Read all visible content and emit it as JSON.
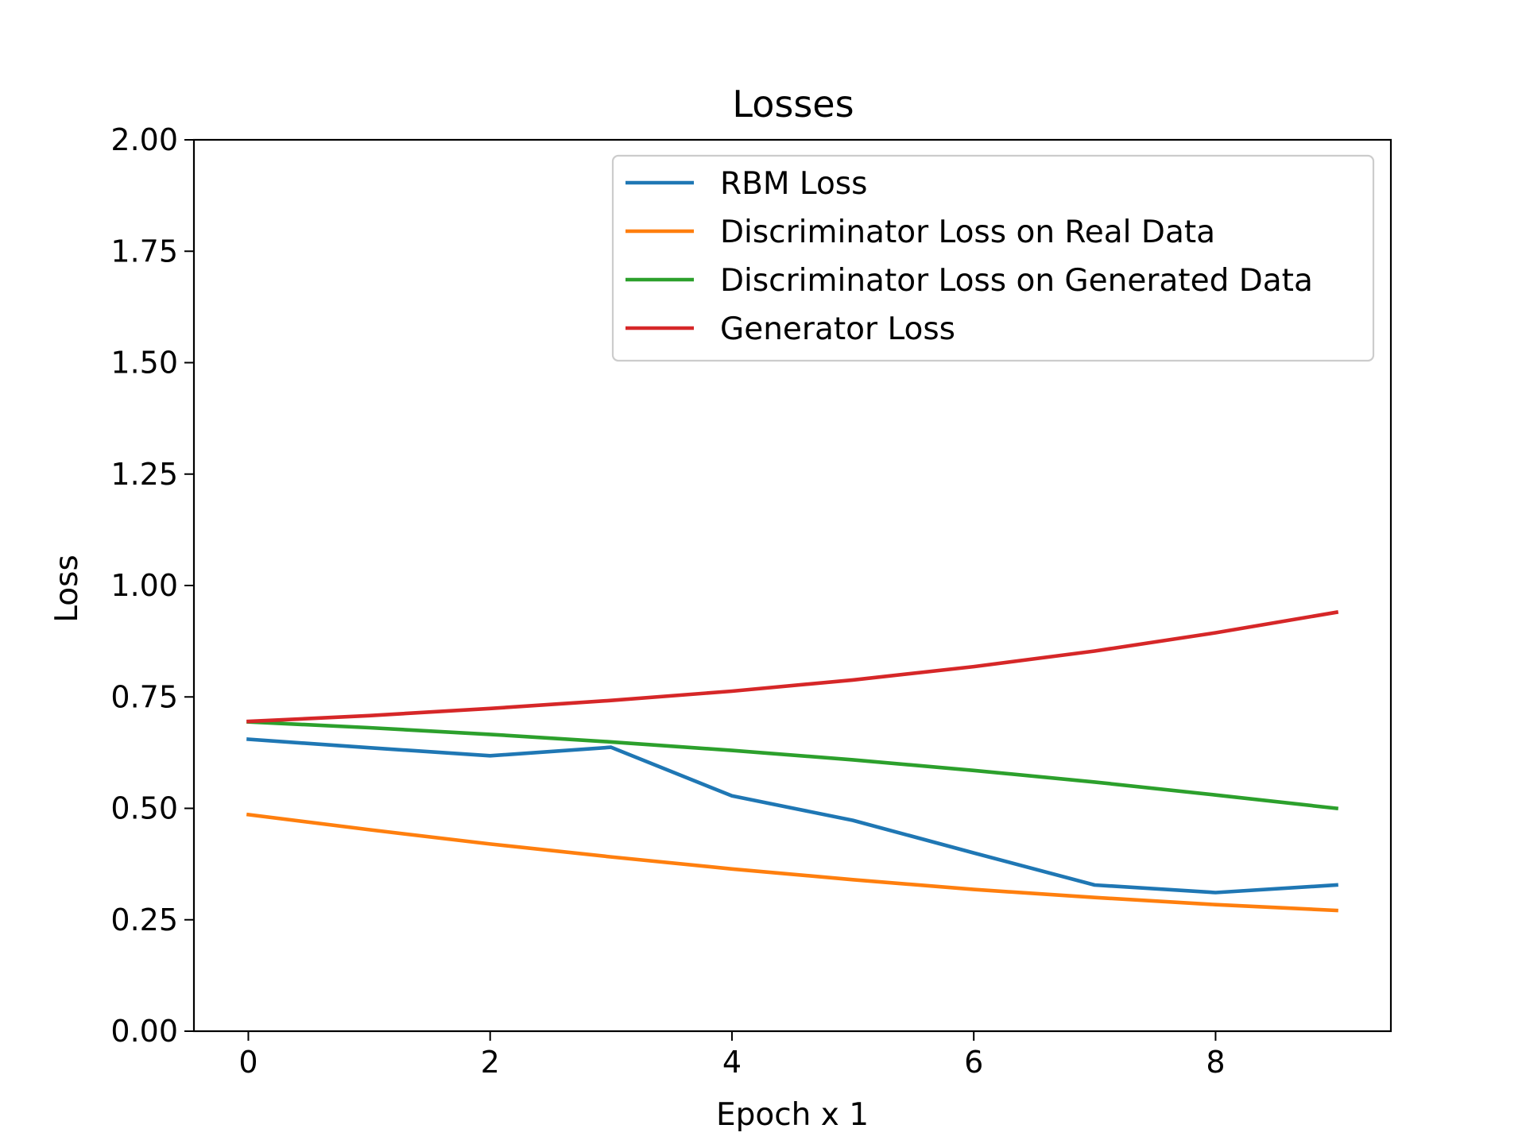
{
  "chart_data": {
    "type": "line",
    "title": "Losses",
    "xlabel": "Epoch x 1",
    "ylabel": "Loss",
    "xlim": [
      -0.45,
      9.45
    ],
    "ylim": [
      0,
      2
    ],
    "x_ticks": [
      "0",
      "2",
      "4",
      "6",
      "8"
    ],
    "y_ticks": [
      "0.00",
      "0.25",
      "0.50",
      "0.75",
      "1.00",
      "1.25",
      "1.50",
      "1.75",
      "2.00"
    ],
    "grid": false,
    "legend_position": "top-right",
    "x": [
      0,
      1,
      2,
      3,
      4,
      5,
      6,
      7,
      8,
      9
    ],
    "series": [
      {
        "name": "RBM Loss",
        "color": "#1f77b4",
        "values": [
          0.655,
          0.636,
          0.618,
          0.637,
          0.528,
          0.473,
          0.4,
          0.328,
          0.311,
          0.328
        ]
      },
      {
        "name": "Discriminator Loss on Real Data",
        "color": "#ff7f0e",
        "values": [
          0.486,
          0.452,
          0.42,
          0.391,
          0.364,
          0.34,
          0.318,
          0.3,
          0.284,
          0.271
        ]
      },
      {
        "name": "Discriminator Loss on Generated Data",
        "color": "#2ca02c",
        "values": [
          0.694,
          0.681,
          0.666,
          0.649,
          0.63,
          0.609,
          0.585,
          0.559,
          0.53,
          0.5
        ]
      },
      {
        "name": "Generator Loss",
        "color": "#d62728",
        "values": [
          0.695,
          0.708,
          0.724,
          0.742,
          0.763,
          0.788,
          0.818,
          0.853,
          0.894,
          0.94
        ]
      }
    ]
  }
}
